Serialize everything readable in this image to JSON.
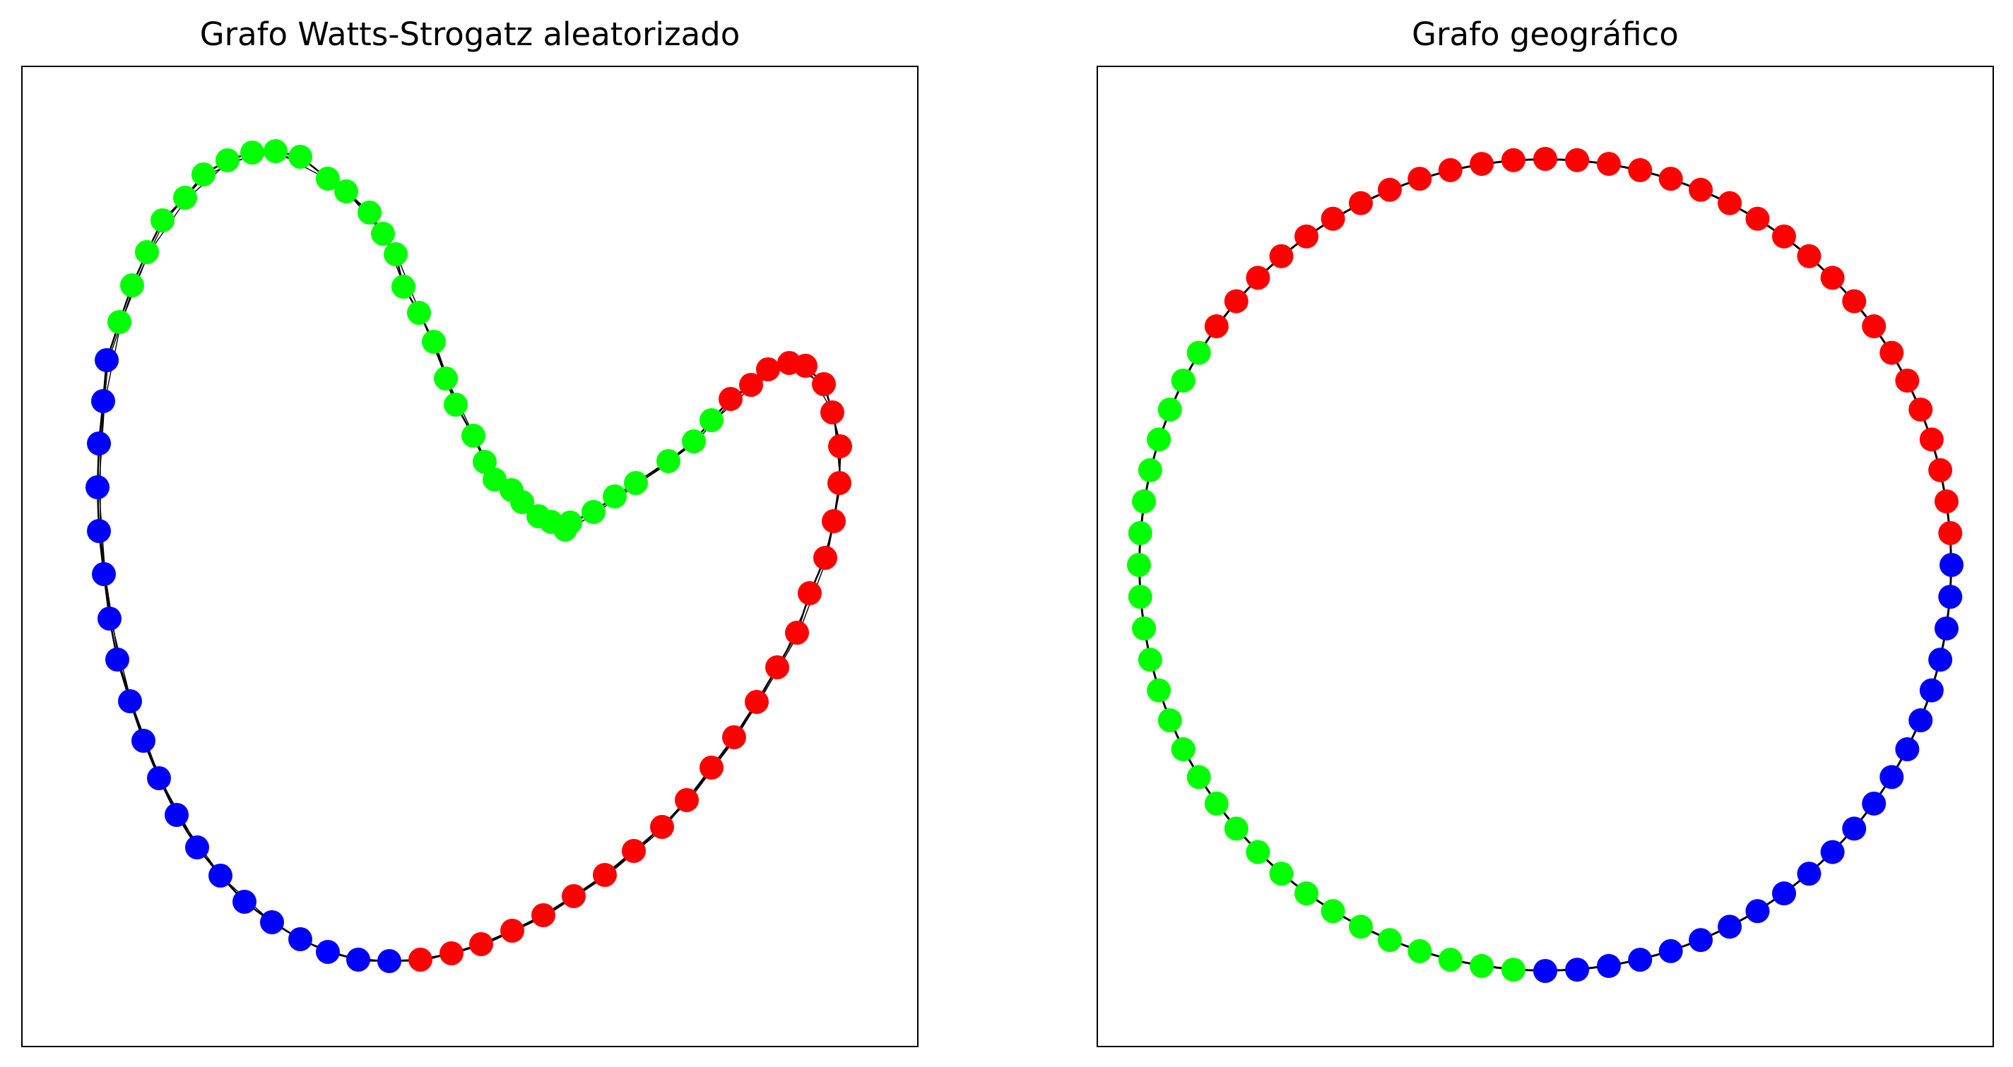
{
  "panels": [
    {
      "title": "Grafo Watts-Strogatz aleatorizado",
      "node_colors": [
        "#00ff00",
        "#0000ff",
        "#ff0000"
      ],
      "edge_color": "#000000"
    },
    {
      "title": "Grafo geográfico",
      "node_colors": [
        "#ff0000",
        "#00ff00",
        "#0000ff"
      ],
      "edge_color": "#000000"
    }
  ]
}
